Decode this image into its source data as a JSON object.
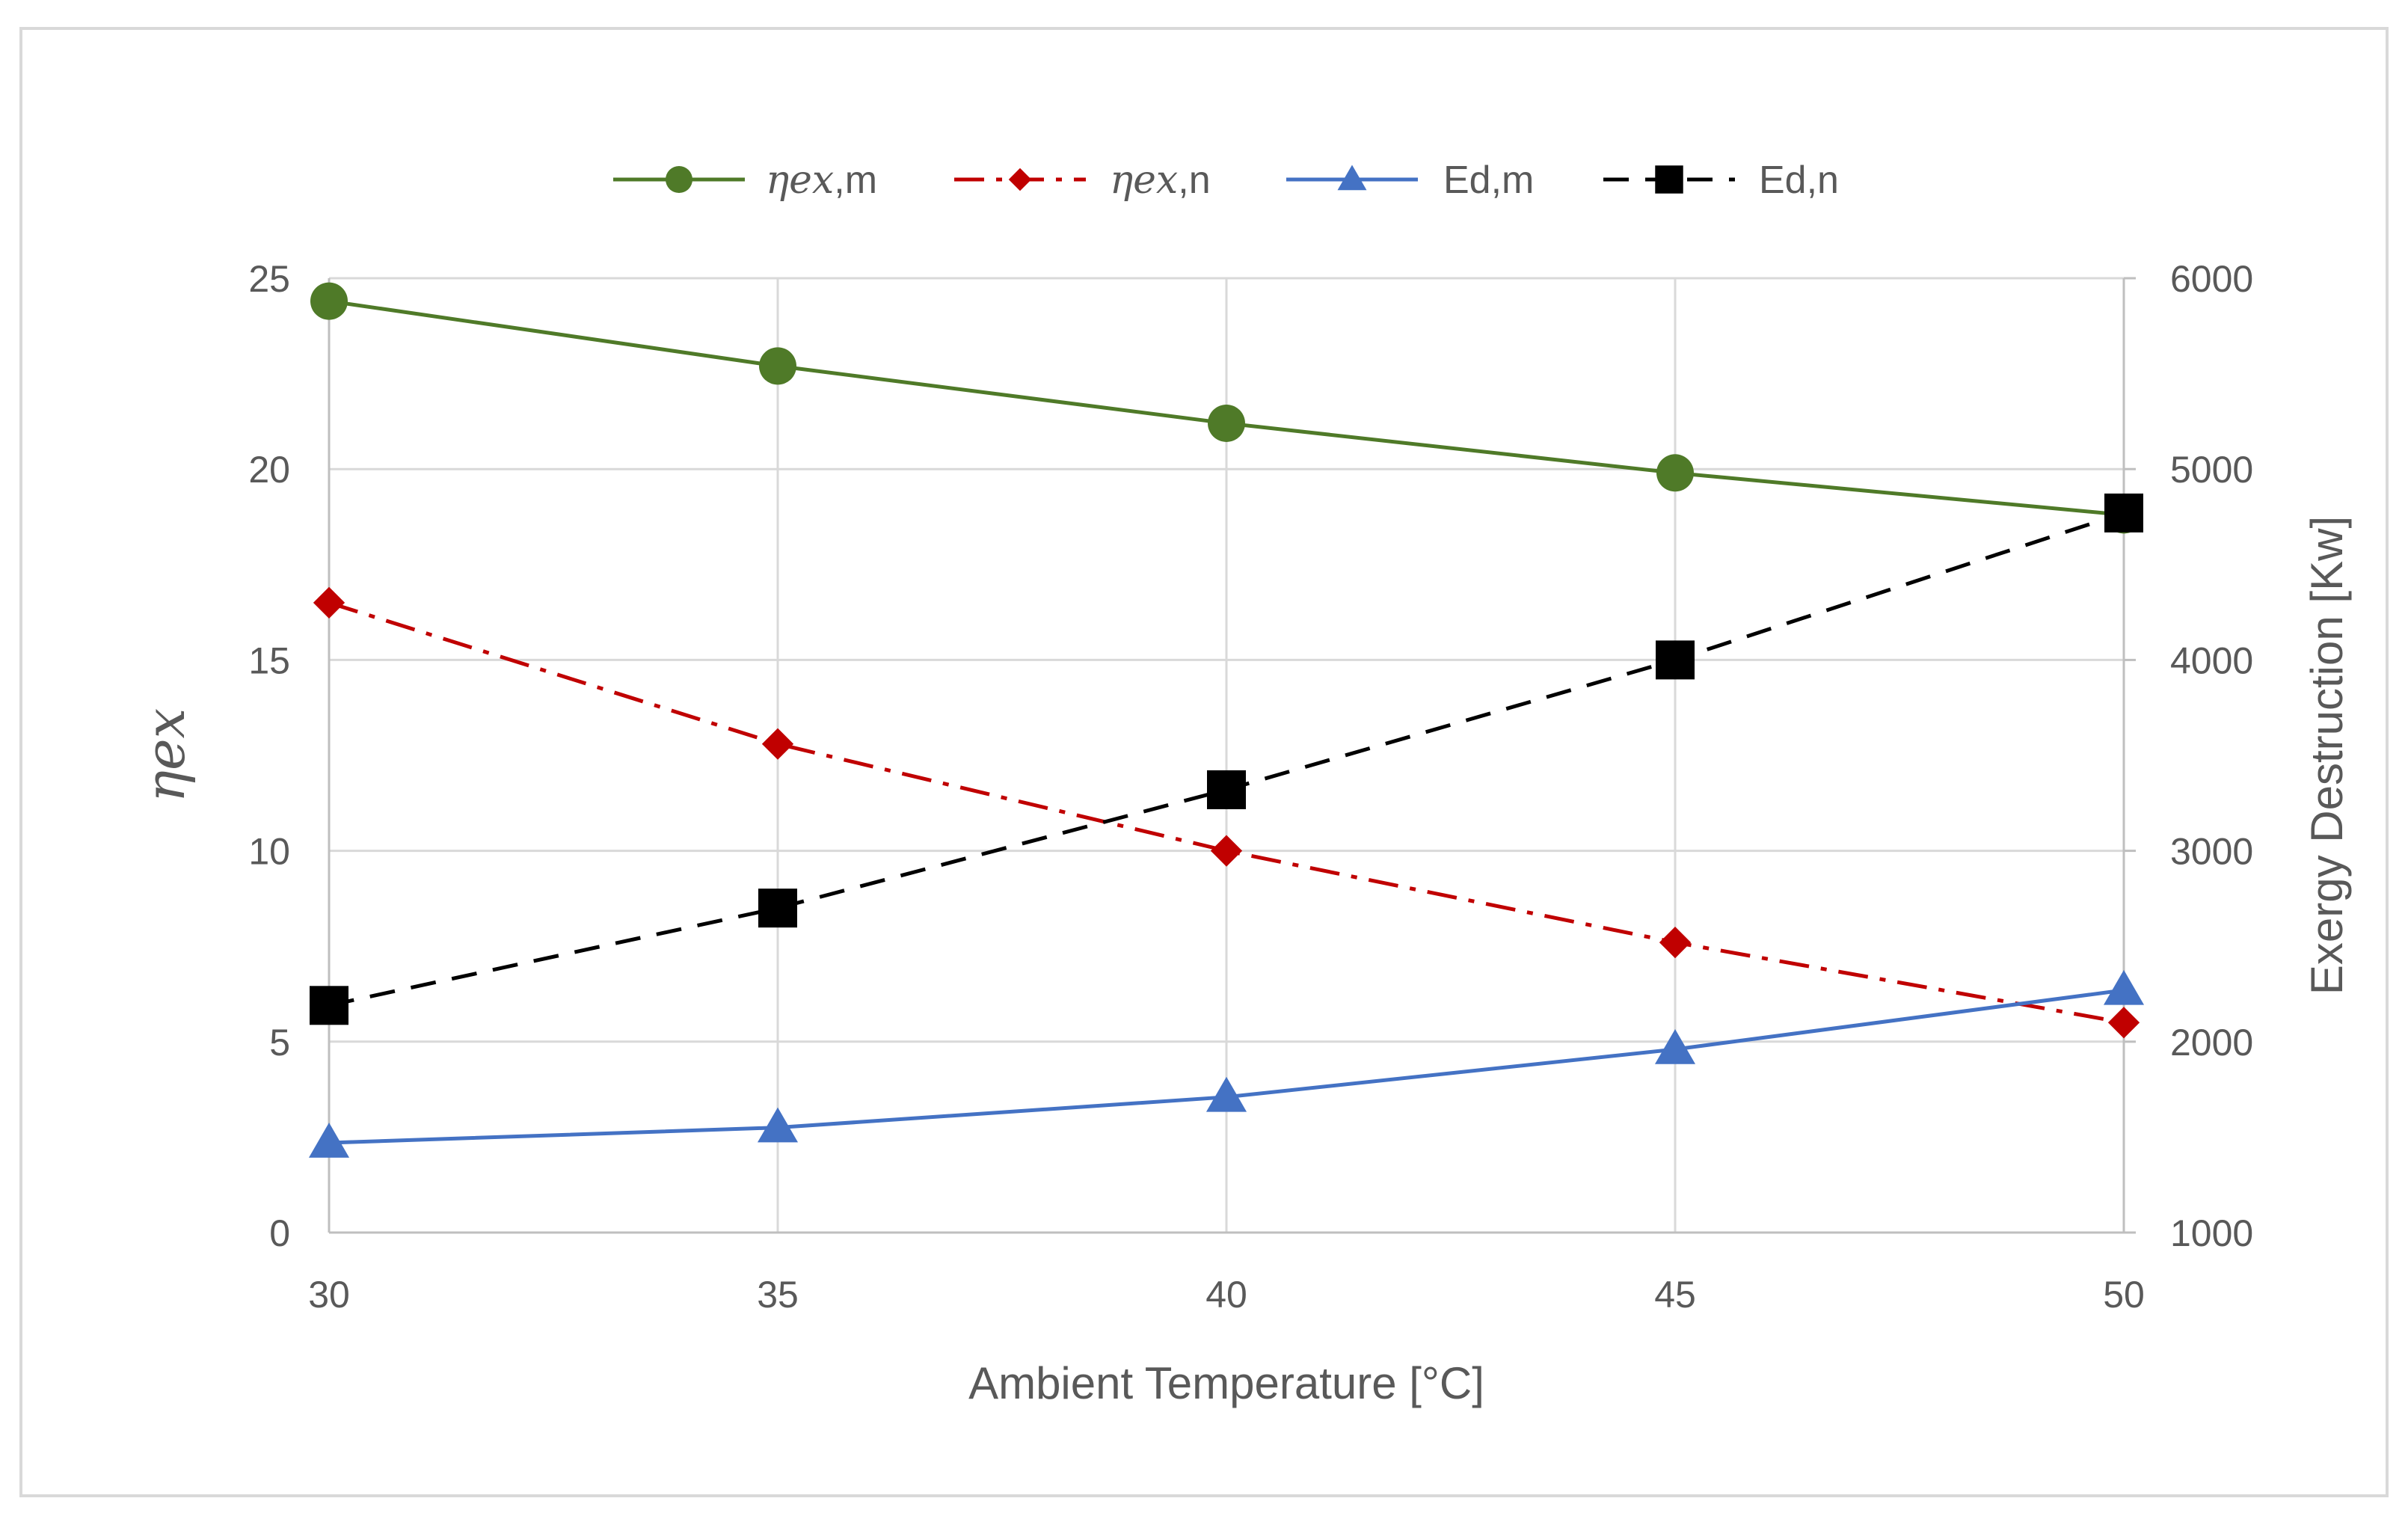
{
  "chart_data": {
    "type": "line",
    "title": "",
    "x": [
      30,
      35,
      40,
      45,
      50
    ],
    "xlabel": "Ambient Temperature [°C]",
    "xlim": [
      30,
      50
    ],
    "x_ticks": [
      "30",
      "35",
      "40",
      "45",
      "50"
    ],
    "ylabel_left": "ηex",
    "ylim_left": [
      0,
      25
    ],
    "y_ticks_left": [
      "0",
      "5",
      "10",
      "15",
      "20",
      "25"
    ],
    "ylabel_right": "Exergy Destruction [Kw]",
    "ylim_right": [
      1000,
      6000
    ],
    "y_ticks_right": [
      "1000",
      "2000",
      "3000",
      "4000",
      "5000",
      "6000"
    ],
    "grid": true,
    "legend_position": "top-center",
    "series": [
      {
        "name": "ηex,m",
        "label_math": "ηex",
        "label_suffix": ",m",
        "axis": "left",
        "values": [
          24.4,
          22.7,
          21.2,
          19.9,
          18.8
        ],
        "color": "#4f7a28",
        "marker": "circle",
        "dash": "solid"
      },
      {
        "name": "ηex,n",
        "label_math": "ηex",
        "label_suffix": ",n",
        "axis": "left",
        "values": [
          16.5,
          12.8,
          10.0,
          7.6,
          5.5
        ],
        "color": "#c00000",
        "marker": "diamond",
        "dash": "dash-dot"
      },
      {
        "name": "Ed,m",
        "label_math": "",
        "label_suffix": "Ed,m",
        "axis": "right",
        "values": [
          1470,
          1550,
          1710,
          1960,
          2270
        ],
        "color": "#4472c4",
        "marker": "triangle",
        "dash": "solid"
      },
      {
        "name": "Ed,n",
        "label_math": "",
        "label_suffix": "Ed,n",
        "axis": "right",
        "values": [
          2190,
          2700,
          3320,
          4000,
          4770
        ],
        "color": "#000000",
        "marker": "square",
        "dash": "dash"
      }
    ]
  }
}
